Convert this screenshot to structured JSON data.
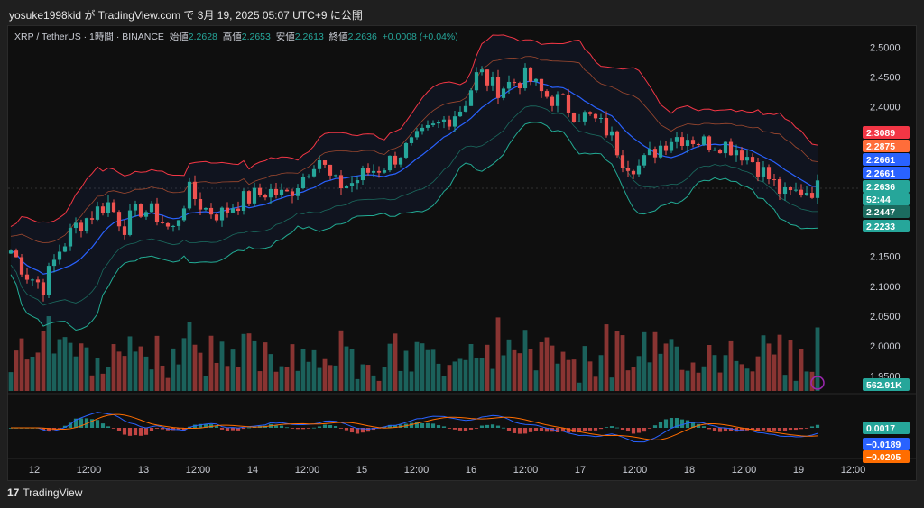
{
  "header": {
    "caption": "yosuke1998kid が TradingView.com で 3月 19, 2025 05:07 UTC+9 に公開"
  },
  "legend": {
    "symbol": "XRP / TetherUS · 1時間 · BINANCE",
    "open_label": "始値",
    "open": "2.2628",
    "high_label": "高値",
    "high": "2.2653",
    "low_label": "安値",
    "low": "2.2613",
    "close_label": "終値",
    "close": "2.2636",
    "change": "+0.0008 (+0.04%)"
  },
  "price_axis": {
    "ticks": [
      "2.5000",
      "2.4500",
      "2.4000",
      "2.1500",
      "2.1000",
      "2.0500",
      "2.0000",
      "1.9500"
    ],
    "badges": [
      {
        "label": "2.3089",
        "color": "#f23645"
      },
      {
        "label": "2.2875",
        "color": "#ff6d3a"
      },
      {
        "label": "2.2661",
        "color": "#2962ff"
      },
      {
        "label": "2.2661",
        "color": "#2962ff"
      },
      {
        "label": "2.2636",
        "color": "#26a69a"
      },
      {
        "label": "52:44",
        "color": "#26a69a"
      },
      {
        "label": "2.2447",
        "color": "#1b6b5f"
      },
      {
        "label": "2.2233",
        "color": "#26a69a"
      },
      {
        "label": "562.91K",
        "color": "#26a69a"
      },
      {
        "label": "0.0017",
        "color": "#26a69a"
      },
      {
        "label": "−0.0189",
        "color": "#2962ff"
      },
      {
        "label": "−0.0205",
        "color": "#ff6d00"
      }
    ]
  },
  "time_axis": [
    "12",
    "12:00",
    "13",
    "12:00",
    "14",
    "12:00",
    "15",
    "12:00",
    "16",
    "12:00",
    "17",
    "12:00",
    "18",
    "12:00",
    "19",
    "12:00"
  ],
  "footer": {
    "logo": "17",
    "brand": "TradingView"
  },
  "colors": {
    "up": "#26a69a",
    "down": "#ef5350",
    "upper_band": "#f23645",
    "basis": "#2962ff",
    "lower_band": "#22ab94",
    "macd": "#2962ff",
    "signal": "#ff6d00"
  },
  "chart_data": {
    "type": "candlestick",
    "symbol": "XRP / TetherUS",
    "interval": "1時間",
    "ylim": [
      1.94,
      2.52
    ],
    "closes_path": [
      2.16,
      2.12,
      2.1,
      2.16,
      2.2,
      2.22,
      2.24,
      2.2,
      2.23,
      2.22,
      2.19,
      2.26,
      2.23,
      2.22,
      2.24,
      2.25,
      2.26,
      2.25,
      2.28,
      2.32,
      2.27,
      2.27,
      2.29,
      2.3,
      2.32,
      2.34,
      2.36,
      2.38,
      2.4,
      2.46,
      2.43,
      2.44,
      2.45,
      2.42,
      2.41,
      2.39,
      2.38,
      2.36,
      2.31,
      2.3,
      2.33,
      2.35,
      2.35,
      2.34,
      2.34,
      2.33,
      2.31,
      2.28,
      2.25,
      2.26,
      2.2636
    ],
    "bollinger": {
      "upper": 2.3089,
      "basis": 2.2661,
      "lower": 2.2233
    },
    "ma": [
      2.2875,
      2.2447
    ],
    "volume_last": "562.91K",
    "macd": {
      "histogram": 0.0017,
      "macd": -0.0189,
      "signal": -0.0205
    }
  }
}
